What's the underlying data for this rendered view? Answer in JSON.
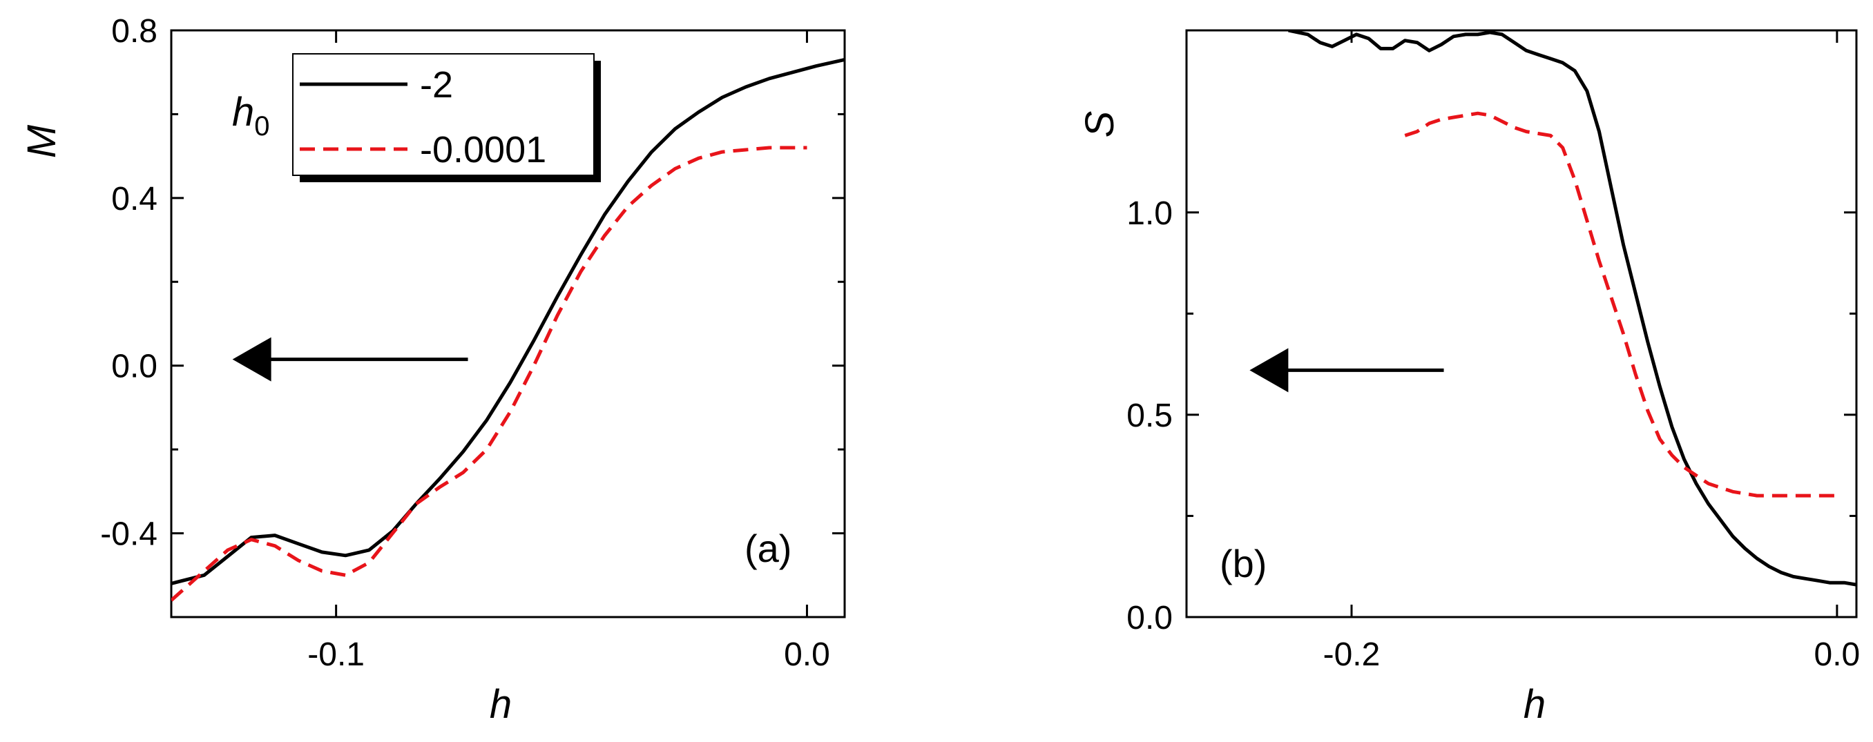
{
  "chart_data": [
    {
      "type": "line",
      "panel_label": "(a)",
      "xlabel": "h",
      "ylabel": "M",
      "xlim": [
        -0.135,
        0.008
      ],
      "ylim": [
        -0.6,
        0.8
      ],
      "xticks": [
        -0.1,
        0.0
      ],
      "xtick_labels": [
        "-0.1",
        "0.0"
      ],
      "yticks": [
        0.8,
        0.4,
        0.0,
        -0.4
      ],
      "ytick_labels": [
        "0.8",
        "0.4",
        "0.0",
        "-0.4"
      ],
      "grid": false,
      "legend": {
        "title": "h",
        "title_sub": "0",
        "placement": "top-left",
        "entries": [
          "-2",
          "-0.0001"
        ]
      },
      "arrow": {
        "from": [
          -0.072,
          0.015
        ],
        "to": [
          -0.122,
          0.015
        ],
        "direction": "left"
      },
      "series": [
        {
          "name": "-2",
          "color": "#000000",
          "style": "solid",
          "x": [
            -0.135,
            -0.128,
            -0.123,
            -0.118,
            -0.113,
            -0.108,
            -0.103,
            -0.098,
            -0.093,
            -0.088,
            -0.083,
            -0.078,
            -0.073,
            -0.068,
            -0.063,
            -0.058,
            -0.053,
            -0.048,
            -0.043,
            -0.038,
            -0.033,
            -0.028,
            -0.023,
            -0.018,
            -0.013,
            -0.008,
            -0.003,
            0.002,
            0.008
          ],
          "y": [
            -0.52,
            -0.5,
            -0.455,
            -0.41,
            -0.405,
            -0.425,
            -0.445,
            -0.453,
            -0.44,
            -0.395,
            -0.33,
            -0.27,
            -0.205,
            -0.13,
            -0.04,
            0.06,
            0.165,
            0.265,
            0.36,
            0.44,
            0.51,
            0.565,
            0.605,
            0.64,
            0.665,
            0.685,
            0.7,
            0.715,
            0.73
          ]
        },
        {
          "name": "-0.0001",
          "color": "#e8141a",
          "style": "dashed",
          "x": [
            -0.135,
            -0.129,
            -0.123,
            -0.118,
            -0.113,
            -0.108,
            -0.103,
            -0.098,
            -0.093,
            -0.088,
            -0.083,
            -0.078,
            -0.073,
            -0.068,
            -0.063,
            -0.058,
            -0.053,
            -0.048,
            -0.043,
            -0.038,
            -0.033,
            -0.028,
            -0.023,
            -0.018,
            -0.013,
            -0.008,
            -0.003,
            0.0
          ],
          "y": [
            -0.56,
            -0.5,
            -0.44,
            -0.415,
            -0.43,
            -0.465,
            -0.49,
            -0.5,
            -0.47,
            -0.4,
            -0.33,
            -0.29,
            -0.255,
            -0.2,
            -0.11,
            0.0,
            0.12,
            0.225,
            0.31,
            0.38,
            0.43,
            0.47,
            0.495,
            0.51,
            0.515,
            0.52,
            0.52,
            0.52
          ]
        }
      ]
    },
    {
      "type": "line",
      "panel_label": "(b)",
      "xlabel": "h",
      "ylabel": "S",
      "xlim": [
        -0.268,
        0.008
      ],
      "ylim": [
        0.0,
        1.45
      ],
      "xticks": [
        -0.2,
        0.0
      ],
      "xtick_labels": [
        "-0.2",
        "0.0"
      ],
      "yticks": [
        0.0,
        0.5,
        1.0
      ],
      "ytick_labels": [
        "0.0",
        "0.5",
        "1.0"
      ],
      "grid": false,
      "arrow": {
        "from": [
          -0.162,
          0.61
        ],
        "to": [
          -0.242,
          0.61
        ],
        "direction": "left"
      },
      "series": [
        {
          "name": "-2",
          "color": "#000000",
          "style": "solid",
          "x": [
            -0.226,
            -0.218,
            -0.213,
            -0.208,
            -0.203,
            -0.198,
            -0.193,
            -0.188,
            -0.183,
            -0.178,
            -0.173,
            -0.168,
            -0.163,
            -0.158,
            -0.153,
            -0.148,
            -0.143,
            -0.138,
            -0.133,
            -0.128,
            -0.123,
            -0.118,
            -0.113,
            -0.108,
            -0.103,
            -0.098,
            -0.093,
            -0.088,
            -0.083,
            -0.078,
            -0.073,
            -0.068,
            -0.063,
            -0.058,
            -0.053,
            -0.048,
            -0.043,
            -0.038,
            -0.033,
            -0.028,
            -0.023,
            -0.018,
            -0.013,
            -0.008,
            -0.003,
            0.003,
            0.008
          ],
          "y": [
            1.45,
            1.44,
            1.42,
            1.41,
            1.425,
            1.44,
            1.43,
            1.405,
            1.405,
            1.425,
            1.42,
            1.4,
            1.415,
            1.435,
            1.44,
            1.44,
            1.445,
            1.44,
            1.42,
            1.4,
            1.39,
            1.38,
            1.37,
            1.35,
            1.3,
            1.2,
            1.06,
            0.92,
            0.8,
            0.68,
            0.57,
            0.47,
            0.39,
            0.33,
            0.28,
            0.24,
            0.2,
            0.17,
            0.145,
            0.125,
            0.11,
            0.1,
            0.095,
            0.09,
            0.085,
            0.085,
            0.08
          ]
        },
        {
          "name": "-0.0001",
          "color": "#e8141a",
          "style": "dashed",
          "x": [
            -0.178,
            -0.173,
            -0.168,
            -0.163,
            -0.158,
            -0.153,
            -0.148,
            -0.143,
            -0.138,
            -0.133,
            -0.128,
            -0.123,
            -0.118,
            -0.113,
            -0.108,
            -0.103,
            -0.098,
            -0.093,
            -0.088,
            -0.083,
            -0.078,
            -0.073,
            -0.068,
            -0.063,
            -0.058,
            -0.053,
            -0.048,
            -0.043,
            -0.038,
            -0.033,
            -0.028,
            -0.023,
            -0.018,
            -0.013,
            -0.008,
            -0.003,
            0.0
          ],
          "y": [
            1.19,
            1.2,
            1.22,
            1.23,
            1.235,
            1.24,
            1.245,
            1.24,
            1.225,
            1.21,
            1.2,
            1.195,
            1.19,
            1.16,
            1.08,
            0.98,
            0.88,
            0.79,
            0.7,
            0.6,
            0.51,
            0.44,
            0.4,
            0.37,
            0.35,
            0.33,
            0.32,
            0.31,
            0.305,
            0.3,
            0.3,
            0.3,
            0.3,
            0.3,
            0.3,
            0.3,
            0.3
          ]
        }
      ]
    }
  ]
}
